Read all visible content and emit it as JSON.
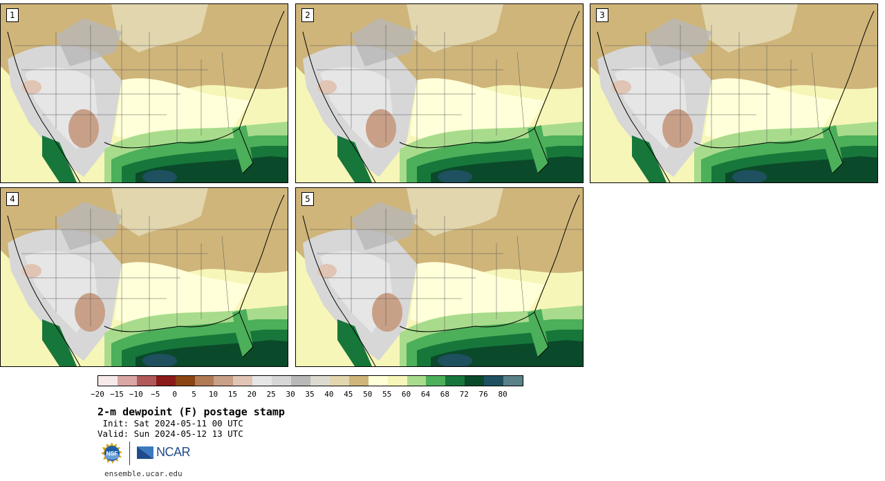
{
  "panels": [
    {
      "label": "1"
    },
    {
      "label": "2"
    },
    {
      "label": "3"
    },
    {
      "label": "4"
    },
    {
      "label": "5"
    }
  ],
  "colorbar": {
    "colors": [
      "#f6e9e9",
      "#d9a5a5",
      "#b05a5a",
      "#8b1a1a",
      "#8b4513",
      "#b07a55",
      "#c8a088",
      "#e0c4b4",
      "#e6e6e6",
      "#d7d7d7",
      "#b8b8b8",
      "#dcdad0",
      "#e2d6ae",
      "#cfb57a",
      "#ffffd9",
      "#f6f6b8",
      "#a8dc8c",
      "#4caf5a",
      "#17773a",
      "#0a4a2a",
      "#1e5060",
      "#5a8088"
    ],
    "ticks": [
      "−20",
      "−15",
      "−10",
      "−5",
      "0",
      "5",
      "10",
      "15",
      "20",
      "25",
      "30",
      "35",
      "40",
      "45",
      "50",
      "55",
      "60",
      "64",
      "68",
      "72",
      "76",
      "80"
    ]
  },
  "title": "2-m dewpoint (F) postage stamp",
  "init": " Init: Sat 2024-05-11 00 UTC",
  "valid": "Valid: Sun 2024-05-12 13 UTC",
  "logos": {
    "nsf": "NSF",
    "ncar": "NCAR"
  },
  "site": "ensemble.ucar.edu"
}
